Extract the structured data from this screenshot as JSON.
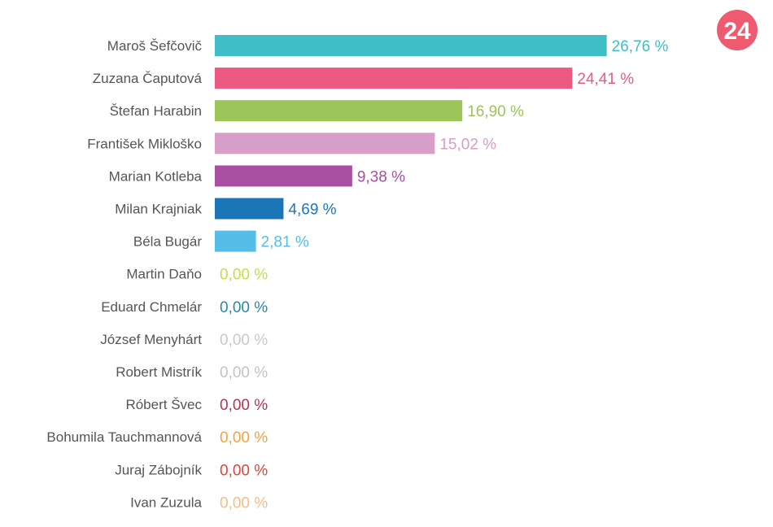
{
  "logo": {
    "text": "24",
    "color": "#ee5a6f"
  },
  "chart_data": {
    "type": "bar",
    "orientation": "horizontal",
    "title": "",
    "xlabel": "",
    "ylabel": "",
    "xlim": [
      0,
      30
    ],
    "grid": false,
    "legend": "none",
    "unit_suffix": " %",
    "categories": [
      "Maroš Šefčovič",
      "Zuzana Čaputová",
      "Štefan Harabin",
      "František Mikloško",
      "Marian Kotleba",
      "Milan Krajniak",
      "Béla Bugár",
      "Martin Daňo",
      "Eduard Chmelár",
      "József Menyhárt",
      "Robert Mistrík",
      "Róbert Švec",
      "Bohumila Tauchmannová",
      "Juraj Zábojník",
      "Ivan Zuzula"
    ],
    "values": [
      26.76,
      24.41,
      16.9,
      15.02,
      9.38,
      4.69,
      2.81,
      0.0,
      0.0,
      0.0,
      0.0,
      0.0,
      0.0,
      0.0,
      0.0
    ],
    "value_labels": [
      "26,76 %",
      "24,41 %",
      "16,90 %",
      "15,02 %",
      "9,38 %",
      "4,69 %",
      "2,81 %",
      "0,00 %",
      "0,00 %",
      "0,00 %",
      "0,00 %",
      "0,00 %",
      "0,00 %",
      "0,00 %",
      "0,00 %"
    ],
    "colors": [
      "#3fbfc5",
      "#ec5a84",
      "#9cc65a",
      "#d69ec9",
      "#a94fa1",
      "#1b76b8",
      "#56bde8",
      "#c8dc4a",
      "#2987a8",
      "#c9c9c9",
      "#c4c4c4",
      "#b7334f",
      "#f1a240",
      "#d9473b",
      "#f4be84"
    ]
  }
}
